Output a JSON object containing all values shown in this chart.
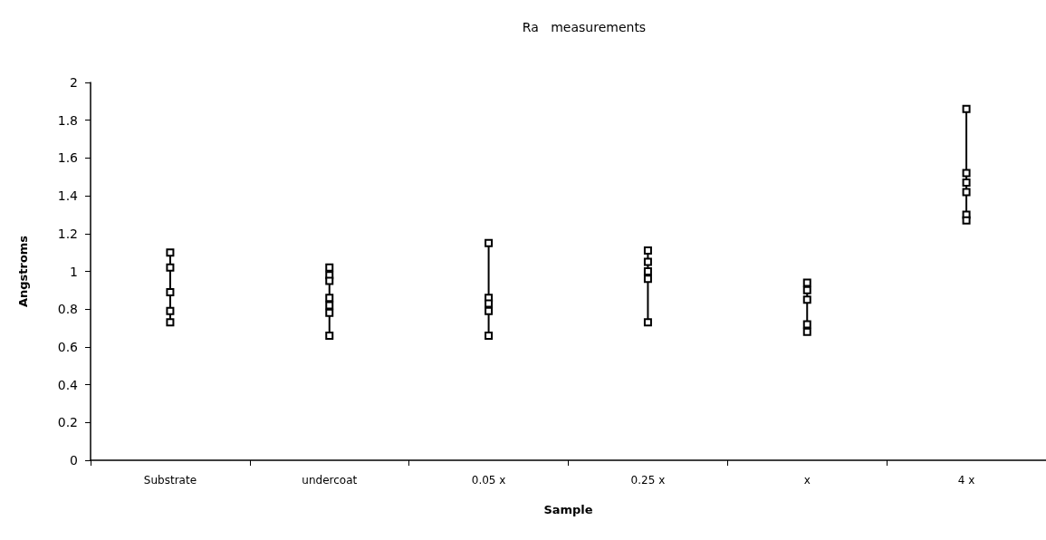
{
  "chart_data": {
    "type": "line",
    "title": "Ra   measurements",
    "xlabel": "Sample",
    "ylabel": "Angstroms",
    "categories": [
      "Substrate",
      "undercoat",
      "0.05 x",
      "0.25 x",
      "x",
      "4 x"
    ],
    "series": [
      {
        "x": [
          "Substrate",
          "Substrate",
          "Substrate",
          "Substrate",
          "Substrate"
        ],
        "values": [
          1.1,
          1.02,
          0.89,
          0.79,
          0.73
        ],
        "color": "#000000"
      },
      {
        "x": [
          "undercoat",
          "undercoat",
          "undercoat",
          "undercoat",
          "undercoat",
          "undercoat",
          "undercoat"
        ],
        "values": [
          1.02,
          0.98,
          0.95,
          0.86,
          0.82,
          0.78,
          0.66
        ],
        "color": "#000000"
      },
      {
        "x": [
          "0.05 x",
          "0.05 x",
          "0.05 x",
          "0.05 x",
          "0.05 x"
        ],
        "values": [
          1.15,
          0.86,
          0.83,
          0.79,
          0.66
        ],
        "color": "#000000"
      },
      {
        "x": [
          "0.25 x",
          "0.25 x",
          "0.25 x",
          "0.25 x",
          "0.25 x"
        ],
        "values": [
          1.11,
          1.05,
          1.0,
          0.96,
          0.73
        ],
        "color": "#000000"
      },
      {
        "x": [
          "x",
          "x",
          "x",
          "x",
          "x"
        ],
        "values": [
          0.94,
          0.9,
          0.85,
          0.72,
          0.68
        ],
        "color": "#000000"
      },
      {
        "x": [
          "4 x",
          "4 x",
          "4 x",
          "4 x",
          "4 x",
          "4 x"
        ],
        "values": [
          1.86,
          1.52,
          1.47,
          1.42,
          1.3,
          1.27
        ],
        "color": "#000000"
      }
    ],
    "ylim": [
      0,
      2
    ],
    "yticks": [
      0,
      0.2,
      0.4,
      0.6,
      0.8,
      1,
      1.2,
      1.4,
      1.6,
      1.8,
      2
    ],
    "grid": false,
    "marker": "square",
    "line_style": "solid"
  }
}
